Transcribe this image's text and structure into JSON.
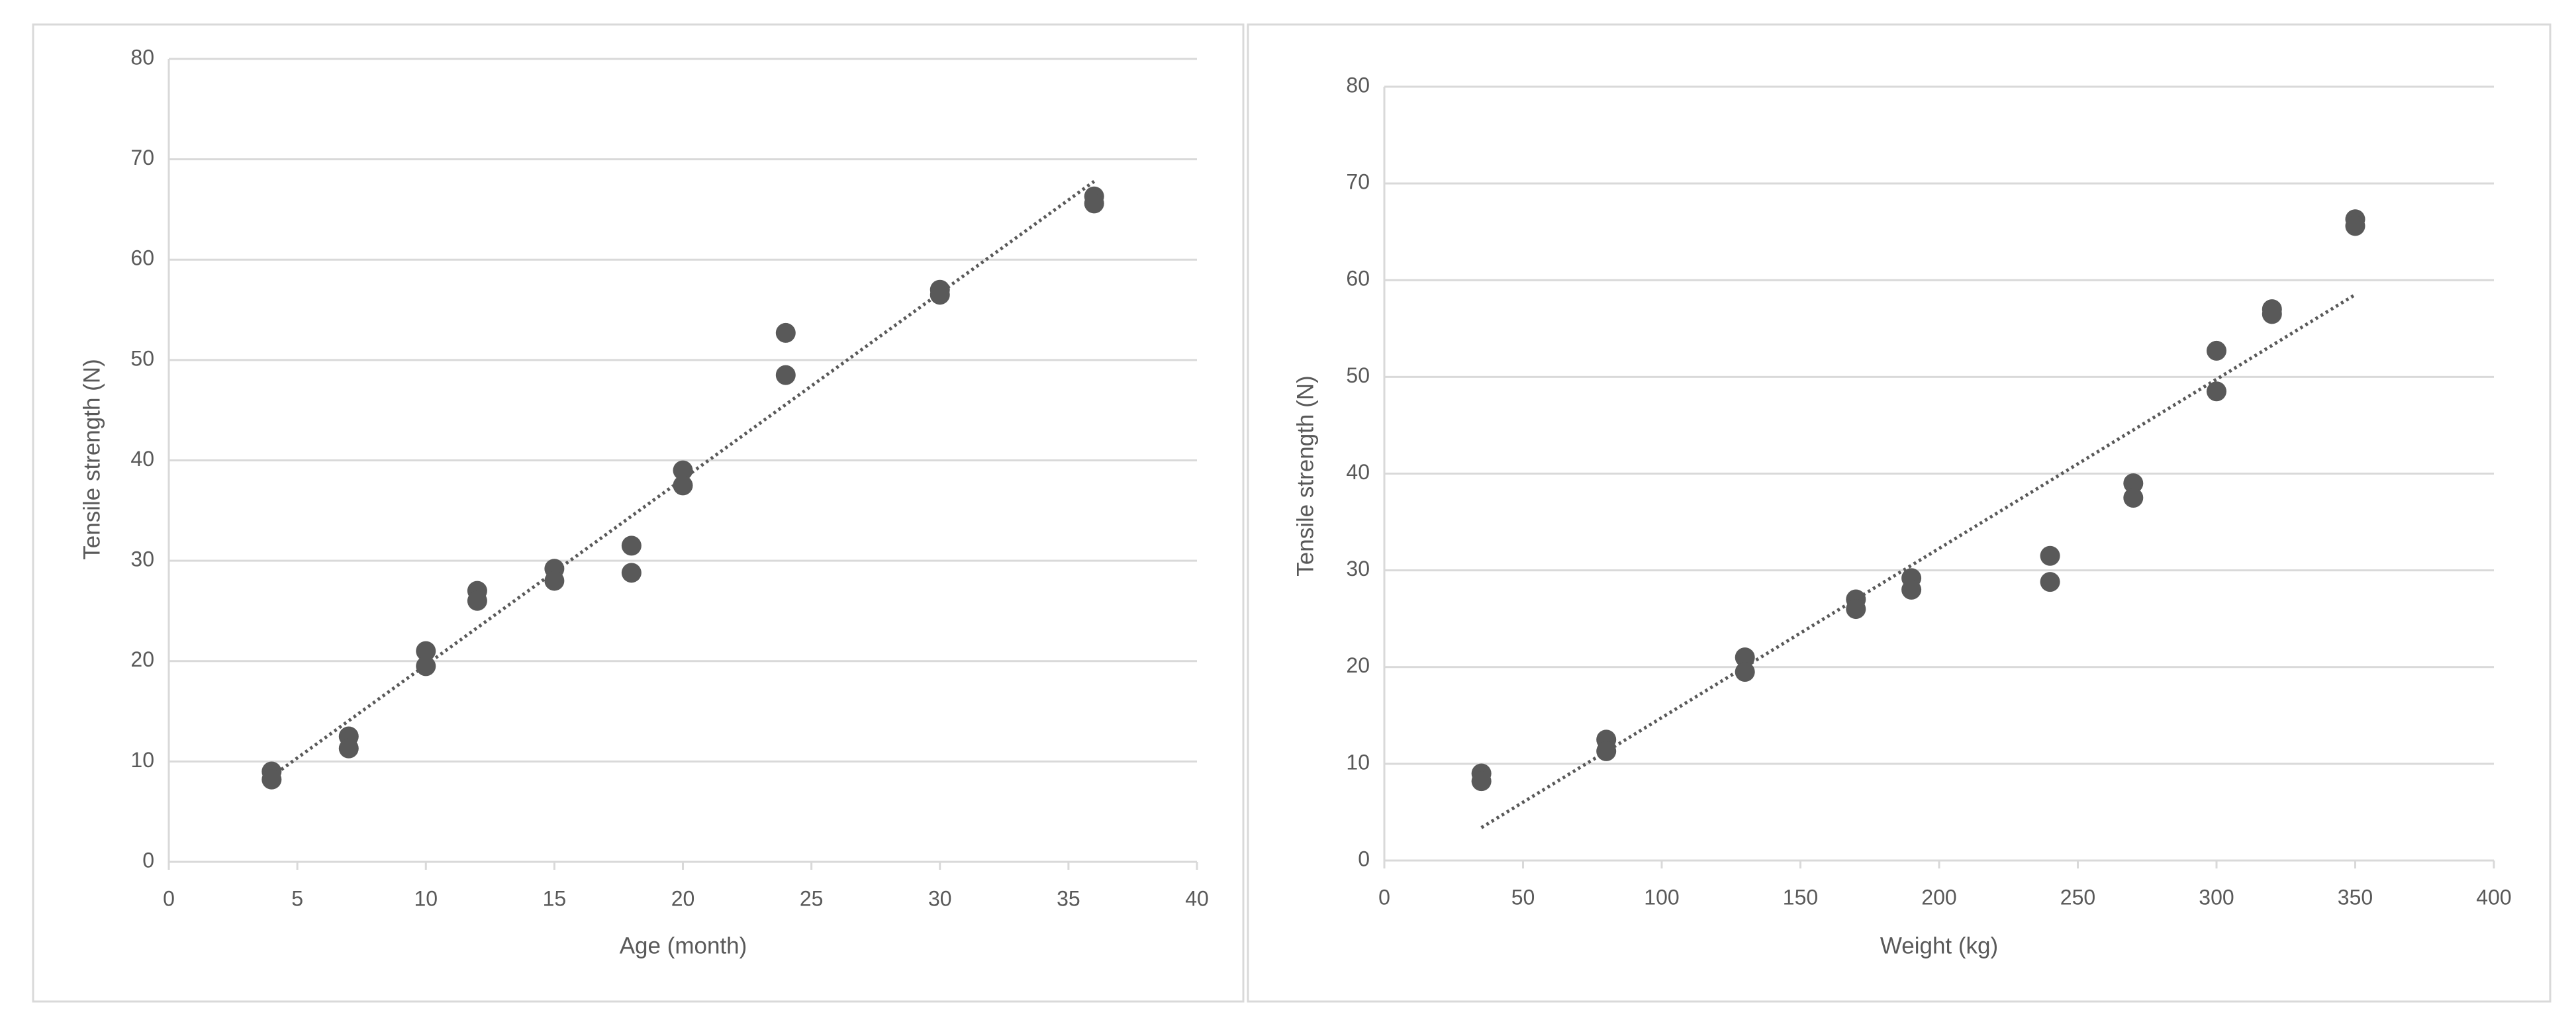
{
  "chart_data": [
    {
      "type": "scatter",
      "xlabel": "Age (month)",
      "ylabel": "Tensile strength (N)",
      "color": "#595959",
      "x": [
        4,
        4,
        7,
        7,
        10,
        10,
        12,
        12,
        15,
        15,
        18,
        18,
        20,
        20,
        24,
        24,
        30,
        30,
        36,
        36
      ],
      "y": [
        9,
        8.2,
        12.5,
        11.3,
        21,
        19.5,
        27,
        26,
        29.2,
        28,
        31.5,
        28.8,
        39,
        37.5,
        52.7,
        48.5,
        57,
        56.5,
        66.3,
        65.6
      ],
      "trendline": {
        "x": [
          4,
          36
        ],
        "y": [
          8.5,
          67.8
        ]
      },
      "xlim": [
        0,
        40
      ],
      "xticks": [
        0,
        5,
        10,
        15,
        20,
        25,
        30,
        35,
        40
      ],
      "ylim": [
        0,
        80
      ],
      "yticks": [
        0,
        10,
        20,
        30,
        40,
        50,
        60,
        70,
        80
      ],
      "grid": true
    },
    {
      "type": "scatter",
      "xlabel": "Weight (kg)",
      "ylabel": "Tensile strength (N)",
      "color": "#595959",
      "x": [
        35,
        35,
        80,
        80,
        130,
        130,
        170,
        170,
        190,
        190,
        240,
        240,
        270,
        270,
        300,
        300,
        320,
        320,
        350,
        350
      ],
      "y": [
        9,
        8.2,
        12.5,
        11.3,
        21,
        19.5,
        27,
        26,
        29.2,
        28,
        31.5,
        28.8,
        39,
        37.5,
        52.7,
        48.5,
        57,
        56.5,
        66.3,
        65.6
      ],
      "trendline": {
        "x": [
          35,
          350
        ],
        "y": [
          3.4,
          58.5
        ]
      },
      "xlim": [
        0,
        400
      ],
      "xticks": [
        0,
        50,
        100,
        150,
        200,
        250,
        300,
        350,
        400
      ],
      "ylim": [
        0,
        80
      ],
      "yticks": [
        0,
        10,
        20,
        30,
        40,
        50,
        60,
        70,
        80
      ],
      "grid": true
    }
  ]
}
